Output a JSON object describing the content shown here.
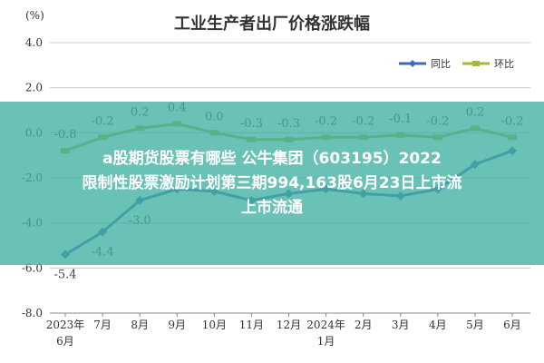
{
  "chart_data": {
    "type": "line",
    "title": "工业生产者出厂价格涨跌幅",
    "unit": "(%)",
    "ylim": [
      -8,
      4
    ],
    "yticks": [
      "4.0",
      "2.0",
      "0.0",
      "-2.0",
      "-4.0",
      "-6.0",
      "-8.0"
    ],
    "categories": [
      [
        "2023年",
        "6月"
      ],
      [
        "7月"
      ],
      [
        "8月"
      ],
      [
        "9月"
      ],
      [
        "10月"
      ],
      [
        "11月"
      ],
      [
        "12月"
      ],
      [
        "2024年",
        "1月"
      ],
      [
        "2月"
      ],
      [
        "3月"
      ],
      [
        "4月"
      ],
      [
        "5月"
      ],
      [
        "6月"
      ]
    ],
    "legend_position": "top-right",
    "series": [
      {
        "name": "同比",
        "color": "#3b6bb5",
        "values": [
          -5.4,
          -4.4,
          -3.0,
          -2.5,
          -2.6,
          -3.0,
          -2.7,
          -2.5,
          -2.7,
          -2.8,
          -2.5,
          -1.4,
          -0.8
        ],
        "labels": [
          "-5.4",
          "-4.4",
          "-3.0",
          "",
          "",
          "",
          "",
          "",
          "",
          "",
          "",
          "",
          ""
        ]
      },
      {
        "name": "环比",
        "color": "#a8b83a",
        "values": [
          -0.8,
          -0.2,
          0.2,
          0.4,
          0.0,
          -0.3,
          -0.3,
          -0.2,
          -0.2,
          -0.1,
          -0.2,
          0.2,
          -0.2
        ],
        "labels": [
          "-0.8",
          "-0.2",
          "0.2",
          "0.4",
          "0.0",
          "-0.3",
          "-0.3",
          "-0.2",
          "-0.2",
          "-0.1",
          "-0.2",
          "0.2",
          "-0.2"
        ]
      }
    ]
  },
  "overlay": {
    "line1": "a股期货股票有哪些 公牛集团（603195）2022",
    "line2": "限制性股票激励计划第三期994,163股6月23日上市流",
    "line3": "上市流通"
  }
}
